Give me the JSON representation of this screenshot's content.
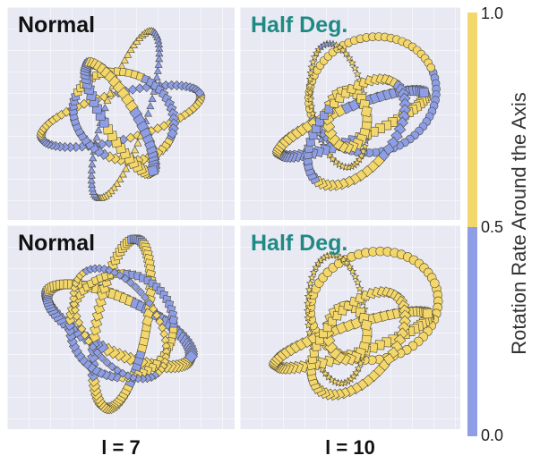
{
  "chart_data": {
    "type": "scatter",
    "colorbar": {
      "label": "Rotation Rate Around the Axis",
      "ticks": [
        "1.0",
        "0.5",
        "0.0"
      ],
      "colors": {
        "high": "#f4d76a",
        "low": "#8d9ee6"
      }
    },
    "columns": [
      "l = 7",
      "l = 10"
    ],
    "panels": [
      {
        "title": "Normal",
        "title_color": "#111111"
      },
      {
        "title": "Half Deg.",
        "title_color": "#1f8a84"
      },
      {
        "title": "Normal",
        "title_color": "#111111"
      },
      {
        "title": "Half Deg.",
        "title_color": "#1f8a84"
      }
    ]
  }
}
